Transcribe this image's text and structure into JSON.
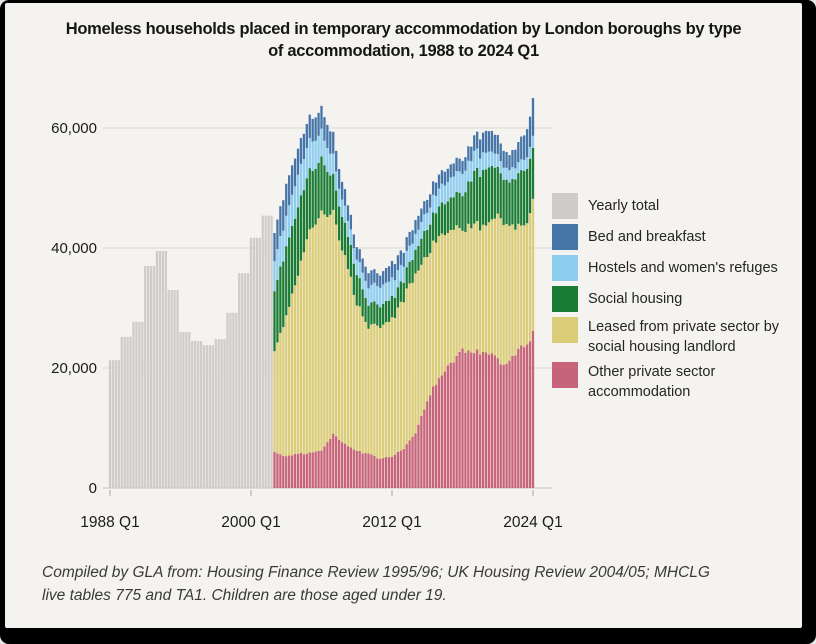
{
  "title": {
    "line1": "Homeless households placed in temporary accommodation by London boroughs by type",
    "line2": "of accommodation, 1988 to 2024 Q1"
  },
  "footnote": {
    "line1": "Compiled by GLA from: Housing Finance Review 1995/96; UK Housing Review 2004/05; MHCLG",
    "line2": "live tables 775 and TA1. Children are those aged under 19."
  },
  "legend": {
    "items": [
      {
        "label": "Yearly total",
        "color": "#cecdcc"
      },
      {
        "label": "Bed and breakfast",
        "color": "#4574a9"
      },
      {
        "label": "Hostels and women's refuges",
        "color": "#8dcdf0"
      },
      {
        "label": "Social housing",
        "color": "#1a7c34"
      },
      {
        "label": "Leased from private sector by social housing landlord",
        "color": "#dbcd78"
      },
      {
        "label": "Other private sector accommodation",
        "color": "#c8647a"
      }
    ]
  },
  "chart_data": {
    "type": "bar",
    "stacked": true,
    "x_unit": "quarter",
    "x_range": [
      "1988 Q1",
      "2024 Q1"
    ],
    "ylim": [
      0,
      66000
    ],
    "grid": true,
    "legend_position": "right",
    "y_ticks": [
      0,
      20000,
      40000,
      60000
    ],
    "y_tick_labels": [
      "0",
      "20,000",
      "40,000",
      "60,000"
    ],
    "x_tick_labels": [
      "1988 Q1",
      "2000 Q1",
      "2012 Q1",
      "2024 Q1"
    ],
    "x_tick_quarters": [
      "1988 Q1",
      "2000 Q1",
      "2012 Q1",
      "2024 Q1"
    ],
    "yearly_total_series": {
      "name": "Yearly total",
      "color": "#cecdcc",
      "years": [
        1988,
        1989,
        1990,
        1991,
        1992,
        1993,
        1994,
        1995,
        1996,
        1997,
        1998,
        1999,
        2000,
        2001
      ],
      "values": [
        21300,
        25200,
        27700,
        37000,
        39500,
        33000,
        26000,
        24500,
        23800,
        24800,
        29200,
        35800,
        41700,
        45400
      ]
    },
    "stacked_series_bottom_to_top": [
      {
        "key": "other_private",
        "name": "Other private sector accommodation",
        "color": "#c8647a"
      },
      {
        "key": "leased",
        "name": "Leased from private sector by social housing landlord",
        "color": "#dbcd78"
      },
      {
        "key": "social_housing",
        "name": "Social housing",
        "color": "#1a7c34"
      },
      {
        "key": "hostels",
        "name": "Hostels and women's refuges",
        "color": "#8dcdf0"
      },
      {
        "key": "bed_and_breakfast",
        "name": "Bed and breakfast",
        "color": "#4574a9"
      }
    ],
    "quarterly_keyframes_note": "Values (households) estimated from chart pixels; quarters between keyframes are linearly interpolated",
    "quarterly_keyframes": [
      {
        "quarter": "2002 Q1",
        "other_private": 6000,
        "leased": 16800,
        "social_housing": 10000,
        "hostels": 5000,
        "bed_and_breakfast": 4700
      },
      {
        "quarter": "2003 Q1",
        "other_private": 5300,
        "leased": 22900,
        "social_housing": 11600,
        "hostels": 5200,
        "bed_and_breakfast": 5300
      },
      {
        "quarter": "2004 Q1",
        "other_private": 5700,
        "leased": 30100,
        "social_housing": 11200,
        "hostels": 5300,
        "bed_and_breakfast": 4400
      },
      {
        "quarter": "2005 Q1",
        "other_private": 5800,
        "leased": 37400,
        "social_housing": 10000,
        "hostels": 5000,
        "bed_and_breakfast": 3800
      },
      {
        "quarter": "2006 Q1",
        "other_private": 6200,
        "leased": 40300,
        "social_housing": 8800,
        "hostels": 4500,
        "bed_and_breakfast": 3900
      },
      {
        "quarter": "2007 Q1",
        "other_private": 9000,
        "leased": 36300,
        "social_housing": 5900,
        "hostels": 3300,
        "bed_and_breakfast": 3700
      },
      {
        "quarter": "2008 Q1",
        "other_private": 7300,
        "leased": 30900,
        "social_housing": 5500,
        "hostels": 2800,
        "bed_and_breakfast": 2700
      },
      {
        "quarter": "2009 Q1",
        "other_private": 6200,
        "leased": 24500,
        "social_housing": 5000,
        "hostels": 2500,
        "bed_and_breakfast": 2100
      },
      {
        "quarter": "2010 Q1",
        "other_private": 5700,
        "leased": 21300,
        "social_housing": 3800,
        "hostels": 2900,
        "bed_and_breakfast": 2500
      },
      {
        "quarter": "2011 Q1",
        "other_private": 4800,
        "leased": 21700,
        "social_housing": 3500,
        "hostels": 3200,
        "bed_and_breakfast": 2100
      },
      {
        "quarter": "2012 Q1",
        "other_private": 5300,
        "leased": 22900,
        "social_housing": 3500,
        "hostels": 3100,
        "bed_and_breakfast": 2700
      },
      {
        "quarter": "2013 Q1",
        "other_private": 6500,
        "leased": 25000,
        "social_housing": 3300,
        "hostels": 2700,
        "bed_and_breakfast": 2300
      },
      {
        "quarter": "2014 Q1",
        "other_private": 9200,
        "leased": 26600,
        "social_housing": 4000,
        "hostels": 2700,
        "bed_and_breakfast": 2300
      },
      {
        "quarter": "2015 Q1",
        "other_private": 14500,
        "leased": 24700,
        "social_housing": 4500,
        "hostels": 2800,
        "bed_and_breakfast": 2200
      },
      {
        "quarter": "2016 Q1",
        "other_private": 18700,
        "leased": 23300,
        "social_housing": 5000,
        "hostels": 3000,
        "bed_and_breakfast": 2300
      },
      {
        "quarter": "2017 Q1",
        "other_private": 20700,
        "leased": 22500,
        "social_housing": 5500,
        "hostels": 3300,
        "bed_and_breakfast": 2200
      },
      {
        "quarter": "2018 Q1",
        "other_private": 23200,
        "leased": 20100,
        "social_housing": 5900,
        "hostels": 3600,
        "bed_and_breakfast": 2200
      },
      {
        "quarter": "2019 Q1",
        "other_private": 22500,
        "leased": 21200,
        "social_housing": 8600,
        "hostels": 3400,
        "bed_and_breakfast": 2600
      },
      {
        "quarter": "2020 Q1",
        "other_private": 23200,
        "leased": 21300,
        "social_housing": 9500,
        "hostels": 2700,
        "bed_and_breakfast": 3600
      },
      {
        "quarter": "2021 Q2",
        "other_private": 20800,
        "leased": 24200,
        "social_housing": 7500,
        "hostels": 2000,
        "bed_and_breakfast": 3000
      },
      {
        "quarter": "2022 Q1",
        "other_private": 21500,
        "leased": 22700,
        "social_housing": 7100,
        "hostels": 2000,
        "bed_and_breakfast": 2500
      },
      {
        "quarter": "2023 Q1",
        "other_private": 23700,
        "leased": 20300,
        "social_housing": 9200,
        "hostels": 1800,
        "bed_and_breakfast": 3700
      },
      {
        "quarter": "2023 Q4",
        "other_private": 25000,
        "leased": 21000,
        "social_housing": 9000,
        "hostels": 2000,
        "bed_and_breakfast": 5000
      },
      {
        "quarter": "2024 Q1",
        "other_private": 26200,
        "leased": 22000,
        "social_housing": 8500,
        "hostels": 2000,
        "bed_and_breakfast": 6300
      }
    ]
  }
}
